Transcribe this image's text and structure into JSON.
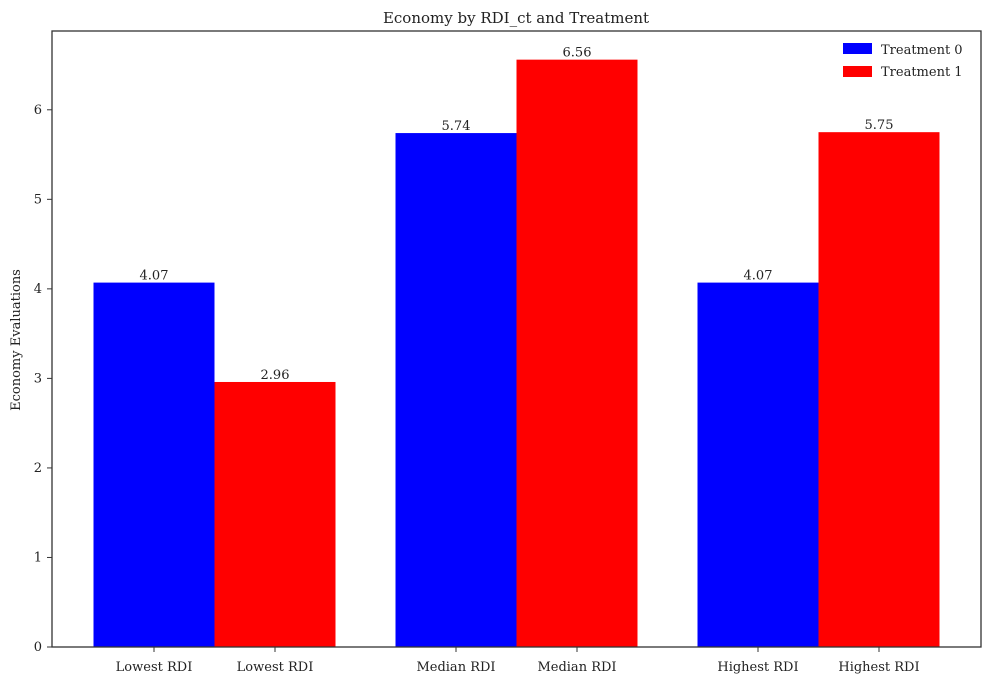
{
  "chart_data": {
    "type": "bar",
    "title": "Economy by RDI_ct and Treatment",
    "xlabel": "",
    "ylabel": "Economy Evaluations",
    "ylim": [
      0,
      6.88
    ],
    "yticks": [
      "0",
      "1",
      "2",
      "3",
      "4",
      "5",
      "6"
    ],
    "grid": false,
    "legend_position": "top-right",
    "groups": [
      {
        "labels": [
          "Lowest RDI",
          "Lowest RDI"
        ]
      },
      {
        "labels": [
          "Median RDI",
          "Median RDI"
        ]
      },
      {
        "labels": [
          "Highest RDI",
          "Highest RDI"
        ]
      }
    ],
    "series": [
      {
        "name": "Treatment 0",
        "color": "#0000ff",
        "values": [
          4.07,
          5.74,
          4.07
        ],
        "value_labels": [
          "4.07",
          "5.74",
          "4.07"
        ]
      },
      {
        "name": "Treatment 1",
        "color": "#ff0000",
        "values": [
          2.96,
          6.56,
          5.75
        ],
        "value_labels": [
          "2.96",
          "6.56",
          "5.75"
        ]
      }
    ]
  }
}
